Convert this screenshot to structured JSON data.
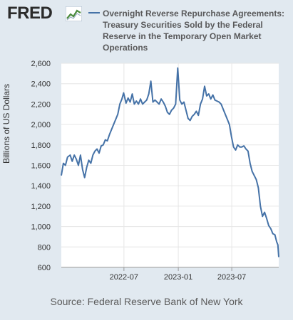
{
  "header": {
    "logo_text": "FRED",
    "logo_icon": "chart-trend-icon",
    "legend_label": "Overnight Reverse Repurchase Agreements: Treasury Securities Sold by the Federal Reserve in the Temporary Open Market Operations"
  },
  "footer": {
    "source": "Source: Federal Reserve Bank of New York"
  },
  "colors": {
    "background": "#e1e9f0",
    "plot_background": "#ffffff",
    "series": "#4572a7",
    "grid": "#e6e6e6"
  },
  "chart_data": {
    "type": "line",
    "ylabel": "Billions of US Dollars",
    "xlabel": "",
    "ylim": [
      600,
      2600
    ],
    "yticks": [
      600,
      800,
      1000,
      1200,
      1400,
      1600,
      1800,
      2000,
      2200,
      2400,
      2600
    ],
    "xlim": [
      "2021-12-01",
      "2023-12-07"
    ],
    "xticks": [
      "2022-07",
      "2023-01",
      "2023-07"
    ],
    "grid": true,
    "legend_position": "top",
    "series": [
      {
        "name": "Overnight Reverse Repurchase Agreements: Treasury Securities Sold by the Federal Reserve in the Temporary Open Market Operations",
        "points": [
          [
            "2021-12-01",
            1500
          ],
          [
            "2021-12-08",
            1620
          ],
          [
            "2021-12-15",
            1600
          ],
          [
            "2021-12-22",
            1680
          ],
          [
            "2021-12-31",
            1700
          ],
          [
            "2022-01-07",
            1640
          ],
          [
            "2022-01-14",
            1700
          ],
          [
            "2022-01-21",
            1660
          ],
          [
            "2022-01-28",
            1600
          ],
          [
            "2022-02-04",
            1700
          ],
          [
            "2022-02-11",
            1560
          ],
          [
            "2022-02-18",
            1480
          ],
          [
            "2022-02-25",
            1580
          ],
          [
            "2022-03-04",
            1650
          ],
          [
            "2022-03-11",
            1620
          ],
          [
            "2022-03-18",
            1700
          ],
          [
            "2022-03-25",
            1740
          ],
          [
            "2022-04-01",
            1760
          ],
          [
            "2022-04-08",
            1720
          ],
          [
            "2022-04-15",
            1790
          ],
          [
            "2022-04-22",
            1800
          ],
          [
            "2022-04-29",
            1850
          ],
          [
            "2022-05-06",
            1840
          ],
          [
            "2022-05-13",
            1900
          ],
          [
            "2022-05-20",
            1950
          ],
          [
            "2022-05-27",
            2000
          ],
          [
            "2022-06-03",
            2050
          ],
          [
            "2022-06-10",
            2100
          ],
          [
            "2022-06-17",
            2200
          ],
          [
            "2022-06-24",
            2250
          ],
          [
            "2022-06-30",
            2310
          ],
          [
            "2022-07-08",
            2210
          ],
          [
            "2022-07-15",
            2260
          ],
          [
            "2022-07-22",
            2220
          ],
          [
            "2022-07-29",
            2300
          ],
          [
            "2022-08-05",
            2200
          ],
          [
            "2022-08-12",
            2230
          ],
          [
            "2022-08-19",
            2200
          ],
          [
            "2022-08-26",
            2250
          ],
          [
            "2022-09-02",
            2200
          ],
          [
            "2022-09-09",
            2220
          ],
          [
            "2022-09-16",
            2240
          ],
          [
            "2022-09-23",
            2300
          ],
          [
            "2022-09-30",
            2425
          ],
          [
            "2022-10-07",
            2220
          ],
          [
            "2022-10-14",
            2240
          ],
          [
            "2022-10-21",
            2220
          ],
          [
            "2022-10-28",
            2200
          ],
          [
            "2022-11-04",
            2250
          ],
          [
            "2022-11-11",
            2220
          ],
          [
            "2022-11-18",
            2180
          ],
          [
            "2022-11-25",
            2120
          ],
          [
            "2022-12-02",
            2100
          ],
          [
            "2022-12-09",
            2140
          ],
          [
            "2022-12-16",
            2160
          ],
          [
            "2022-12-23",
            2200
          ],
          [
            "2022-12-30",
            2554
          ],
          [
            "2023-01-06",
            2240
          ],
          [
            "2023-01-13",
            2200
          ],
          [
            "2023-01-20",
            2220
          ],
          [
            "2023-01-27",
            2140
          ],
          [
            "2023-02-03",
            2060
          ],
          [
            "2023-02-10",
            2040
          ],
          [
            "2023-02-17",
            2080
          ],
          [
            "2023-02-24",
            2100
          ],
          [
            "2023-03-03",
            2130
          ],
          [
            "2023-03-10",
            2090
          ],
          [
            "2023-03-17",
            2200
          ],
          [
            "2023-03-24",
            2250
          ],
          [
            "2023-03-31",
            2375
          ],
          [
            "2023-04-07",
            2280
          ],
          [
            "2023-04-14",
            2300
          ],
          [
            "2023-04-21",
            2250
          ],
          [
            "2023-04-28",
            2290
          ],
          [
            "2023-05-05",
            2240
          ],
          [
            "2023-05-12",
            2230
          ],
          [
            "2023-05-19",
            2220
          ],
          [
            "2023-05-26",
            2200
          ],
          [
            "2023-06-02",
            2150
          ],
          [
            "2023-06-09",
            2100
          ],
          [
            "2023-06-16",
            2050
          ],
          [
            "2023-06-23",
            2000
          ],
          [
            "2023-06-30",
            1880
          ],
          [
            "2023-07-07",
            1780
          ],
          [
            "2023-07-14",
            1750
          ],
          [
            "2023-07-21",
            1800
          ],
          [
            "2023-07-28",
            1780
          ],
          [
            "2023-08-04",
            1780
          ],
          [
            "2023-08-11",
            1790
          ],
          [
            "2023-08-18",
            1760
          ],
          [
            "2023-08-25",
            1740
          ],
          [
            "2023-09-01",
            1620
          ],
          [
            "2023-09-08",
            1540
          ],
          [
            "2023-09-15",
            1500
          ],
          [
            "2023-09-22",
            1460
          ],
          [
            "2023-09-29",
            1380
          ],
          [
            "2023-10-06",
            1200
          ],
          [
            "2023-10-13",
            1100
          ],
          [
            "2023-10-20",
            1140
          ],
          [
            "2023-10-27",
            1080
          ],
          [
            "2023-11-03",
            1010
          ],
          [
            "2023-11-10",
            980
          ],
          [
            "2023-11-17",
            930
          ],
          [
            "2023-11-24",
            920
          ],
          [
            "2023-11-30",
            850
          ],
          [
            "2023-12-04",
            820
          ],
          [
            "2023-12-07",
            700
          ]
        ]
      }
    ]
  }
}
